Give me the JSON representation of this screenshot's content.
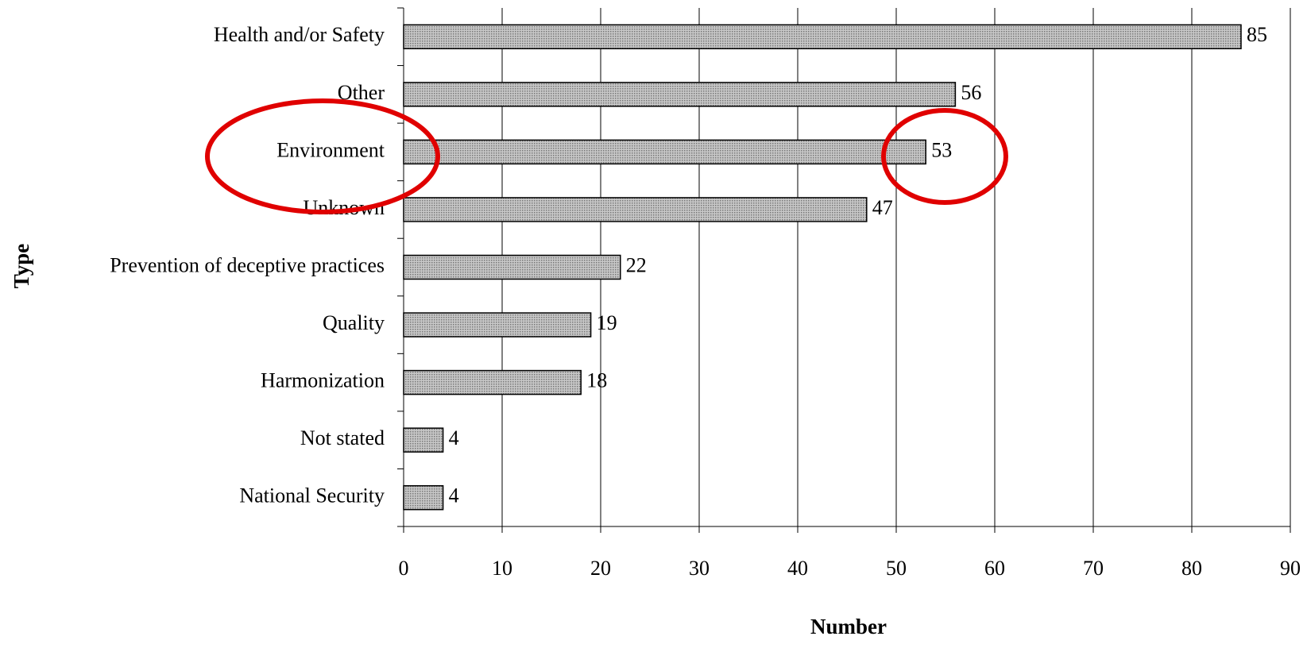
{
  "chart_data": {
    "type": "bar",
    "orientation": "horizontal",
    "x_label": "Number",
    "y_label": "Type",
    "categories": [
      "Health and/or Safety",
      "Other",
      "Environment",
      "Unknown",
      "Prevention of deceptive practices",
      "Quality",
      "Harmonization",
      "Not stated",
      "National Security"
    ],
    "values": [
      85,
      56,
      53,
      47,
      22,
      19,
      18,
      4,
      4
    ],
    "color": "#c8c8c8",
    "xlim": [
      0,
      90
    ],
    "xticks": [
      0,
      10,
      20,
      30,
      40,
      50,
      60,
      70,
      80,
      90
    ],
    "grid": true
  }
}
